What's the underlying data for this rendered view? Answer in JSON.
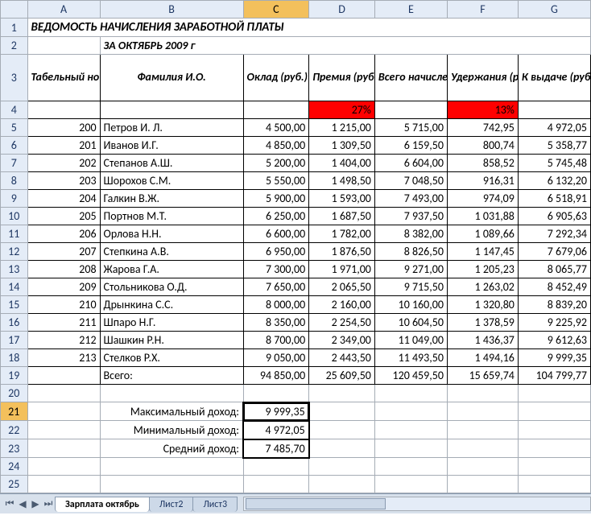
{
  "columns": [
    "A",
    "B",
    "C",
    "D",
    "E",
    "F",
    "G"
  ],
  "rowNumbers": [
    1,
    2,
    3,
    4,
    5,
    6,
    7,
    8,
    9,
    10,
    11,
    12,
    13,
    14,
    15,
    16,
    17,
    18,
    19,
    20,
    21,
    22,
    23,
    24,
    25
  ],
  "title": "ВЕДОМОСТЬ НАЧИСЛЕНИЯ ЗАРАБОТНОЙ ПЛАТЫ",
  "subtitle": "ЗА ОКТЯБРЬ 2009 г",
  "headers": {
    "A": "Табельный номер",
    "B": "Фамилия И.О.",
    "C": "Оклад (руб.)",
    "D": "Премия (руб.)",
    "E": "Всего начислено (руб.)",
    "F": "Удержания (руб.)",
    "G": "К выдаче (руб.)"
  },
  "percent": {
    "D": "27%",
    "F": "13%"
  },
  "rows": [
    {
      "A": "200",
      "B": "Петров И. Л.",
      "C": "4 500,00",
      "D": "1 215,00",
      "E": "5 715,00",
      "F": "742,95",
      "G": "4 972,05"
    },
    {
      "A": "201",
      "B": "Иванов И.Г.",
      "C": "4 850,00",
      "D": "1 309,50",
      "E": "6 159,50",
      "F": "800,74",
      "G": "5 358,77"
    },
    {
      "A": "202",
      "B": "Степанов А.Ш.",
      "C": "5 200,00",
      "D": "1 404,00",
      "E": "6 604,00",
      "F": "858,52",
      "G": "5 745,48"
    },
    {
      "A": "203",
      "B": "Шорохов С.М.",
      "C": "5 550,00",
      "D": "1 498,50",
      "E": "7 048,50",
      "F": "916,31",
      "G": "6 132,20"
    },
    {
      "A": "204",
      "B": "Галкин В.Ж.",
      "C": "5 900,00",
      "D": "1 593,00",
      "E": "7 493,00",
      "F": "974,09",
      "G": "6 518,91"
    },
    {
      "A": "205",
      "B": "Портнов М.Т.",
      "C": "6 250,00",
      "D": "1 687,50",
      "E": "7 937,50",
      "F": "1 031,88",
      "G": "6 905,63"
    },
    {
      "A": "206",
      "B": "Орлова Н.Н.",
      "C": "6 600,00",
      "D": "1 782,00",
      "E": "8 382,00",
      "F": "1 089,66",
      "G": "7 292,34"
    },
    {
      "A": "207",
      "B": "Степкина А.В.",
      "C": "6 950,00",
      "D": "1 876,50",
      "E": "8 826,50",
      "F": "1 147,45",
      "G": "7 679,06"
    },
    {
      "A": "208",
      "B": "Жарова Г.А.",
      "C": "7 300,00",
      "D": "1 971,00",
      "E": "9 271,00",
      "F": "1 205,23",
      "G": "8 065,77"
    },
    {
      "A": "209",
      "B": "Стольникова О.Д.",
      "C": "7 650,00",
      "D": "2 065,50",
      "E": "9 715,50",
      "F": "1 263,02",
      "G": "8 452,49"
    },
    {
      "A": "210",
      "B": "Дрынкина С.С.",
      "C": "8 000,00",
      "D": "2 160,00",
      "E": "10 160,00",
      "F": "1 320,80",
      "G": "8 839,20"
    },
    {
      "A": "211",
      "B": "Шпаро Н.Г.",
      "C": "8 350,00",
      "D": "2 254,50",
      "E": "10 604,50",
      "F": "1 378,59",
      "G": "9 225,92"
    },
    {
      "A": "212",
      "B": "Шашкин Р.Н.",
      "C": "8 700,00",
      "D": "2 349,00",
      "E": "11 049,00",
      "F": "1 436,37",
      "G": "9 612,63"
    },
    {
      "A": "213",
      "B": "Стелков Р.Х.",
      "C": "9 050,00",
      "D": "2 443,50",
      "E": "11 493,50",
      "F": "1 494,16",
      "G": "9 999,35"
    }
  ],
  "total": {
    "B": "Всего:",
    "C": "94 850,00",
    "D": "25 609,50",
    "E": "120 459,50",
    "F": "15 659,74",
    "G": "104 799,77"
  },
  "stats": [
    {
      "label": "Максимальный доход:",
      "value": "9 999,35"
    },
    {
      "label": "Минимальный доход:",
      "value": "4 972,05"
    },
    {
      "label": "Средний доход:",
      "value": "7 485,70"
    }
  ],
  "tabs": [
    "Зарплата октябрь",
    "Лист2",
    "Лист3"
  ],
  "activeTab": 0,
  "colors": {
    "header_bg": "#e4ecf7",
    "grid": "#a5acb5",
    "red": "#ff0000",
    "sel": "#f3c05c"
  },
  "selectedCell": "C21"
}
